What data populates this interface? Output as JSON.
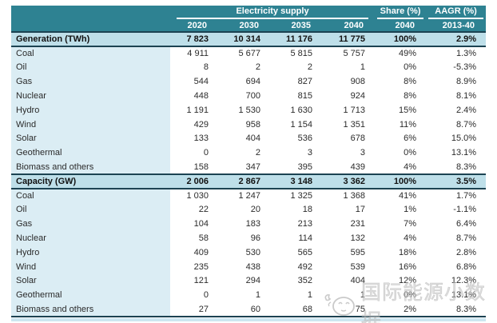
{
  "chart_data": {
    "type": "table",
    "title": "Electricity supply",
    "share_header": "Share (%)",
    "aagr_header": "AAGR (%)",
    "year_columns": [
      "2020",
      "2030",
      "2035",
      "2040"
    ],
    "share_sub": "2040",
    "aagr_sub": "2013-40",
    "columns": [
      "",
      "2020",
      "2030",
      "2035",
      "2040",
      "Share (%) 2040",
      "AAGR (%) 2013-40"
    ],
    "sections": [
      {
        "title": "Generation (TWh)",
        "totals": [
          "7 823",
          "10 314",
          "11 176",
          "11 775",
          "100%",
          "2.9%"
        ],
        "rows": [
          {
            "label": "Coal",
            "values": [
              "4 911",
              "5 677",
              "5 815",
              "5 757",
              "49%",
              "1.3%"
            ]
          },
          {
            "label": "Oil",
            "values": [
              "8",
              "2",
              "2",
              "1",
              "0%",
              "-5.3%"
            ]
          },
          {
            "label": "Gas",
            "values": [
              "544",
              "694",
              "827",
              "908",
              "8%",
              "8.9%"
            ]
          },
          {
            "label": "Nuclear",
            "values": [
              "448",
              "700",
              "815",
              "924",
              "8%",
              "8.1%"
            ]
          },
          {
            "label": "Hydro",
            "values": [
              "1 191",
              "1 530",
              "1 630",
              "1 713",
              "15%",
              "2.4%"
            ]
          },
          {
            "label": "Wind",
            "values": [
              "429",
              "958",
              "1 154",
              "1 351",
              "11%",
              "8.7%"
            ]
          },
          {
            "label": "Solar",
            "values": [
              "133",
              "404",
              "536",
              "678",
              "6%",
              "15.0%"
            ]
          },
          {
            "label": "Geothermal",
            "values": [
              "0",
              "2",
              "3",
              "3",
              "0%",
              "13.1%"
            ]
          },
          {
            "label": "Biomass and others",
            "values": [
              "158",
              "347",
              "395",
              "439",
              "4%",
              "8.3%"
            ]
          }
        ]
      },
      {
        "title": "Capacity (GW)",
        "totals": [
          "2 006",
          "2 867",
          "3 148",
          "3 362",
          "100%",
          "3.5%"
        ],
        "rows": [
          {
            "label": "Coal",
            "values": [
              "1 030",
              "1 247",
              "1 325",
              "1 368",
              "41%",
              "1.7%"
            ]
          },
          {
            "label": "Oil",
            "values": [
              "22",
              "20",
              "18",
              "17",
              "1%",
              "-1.1%"
            ]
          },
          {
            "label": "Gas",
            "values": [
              "104",
              "183",
              "213",
              "231",
              "7%",
              "6.4%"
            ]
          },
          {
            "label": "Nuclear",
            "values": [
              "58",
              "96",
              "114",
              "132",
              "4%",
              "8.7%"
            ]
          },
          {
            "label": "Hydro",
            "values": [
              "409",
              "530",
              "565",
              "595",
              "18%",
              "2.8%"
            ]
          },
          {
            "label": "Wind",
            "values": [
              "235",
              "438",
              "492",
              "539",
              "16%",
              "6.8%"
            ]
          },
          {
            "label": "Solar",
            "values": [
              "121",
              "294",
              "352",
              "404",
              "12%",
              "12.3%"
            ]
          },
          {
            "label": "Geothermal",
            "values": [
              "0",
              "1",
              "1",
              "1",
              "0%",
              "13.1%"
            ]
          },
          {
            "label": "Biomass and others",
            "values": [
              "27",
              "60",
              "68",
              "75",
              "2%",
              "8.3%"
            ]
          }
        ]
      }
    ]
  },
  "watermark": {
    "text": "国际能源小数据"
  },
  "colors": {
    "header_bg": "#2e8292",
    "section_bg": "#bedfe9",
    "label_bg": "#dbedf4",
    "border_dark": "#1c4352",
    "bottom_strip": "#cde6f0",
    "watermark_gray": "#c2c2c2"
  }
}
